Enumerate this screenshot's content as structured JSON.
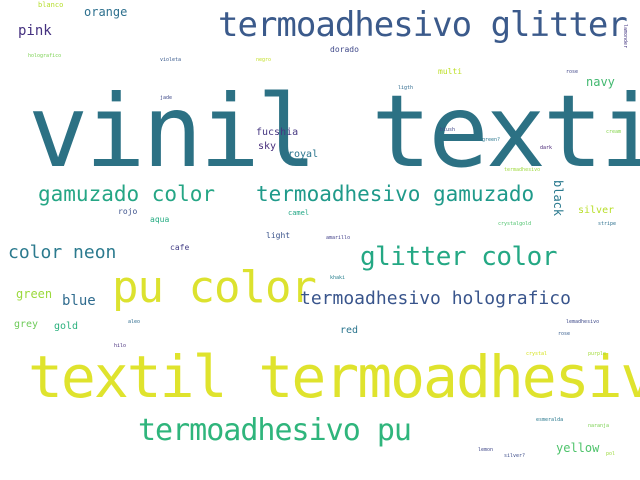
{
  "words": {
    "vinil_textil": {
      "text": "vinil textil",
      "color": "#2c7184"
    },
    "textil_termoadhesivo": {
      "text": "textil termoadhesivo",
      "color": "#dfe32d"
    },
    "pu_color": {
      "text": "pu color",
      "color": "#dce22f"
    },
    "termoadhesivo_glitter": {
      "text": "termoadhesivo glitter",
      "color": "#3b5a8b"
    },
    "termoadhesivo_pu": {
      "text": "termoadhesivo pu",
      "color": "#2fb57c"
    },
    "glitter_color": {
      "text": "glitter color",
      "color": "#24a884"
    },
    "termoadhesivo_gamuzado": {
      "text": "termoadhesivo gamuzado",
      "color": "#1f9a8a"
    },
    "gamuzado_color": {
      "text": "gamuzado color",
      "color": "#25a685"
    },
    "termoadhesivo_holografico": {
      "text": "termoadhesivo holografico",
      "color": "#39558c"
    },
    "color_neon": {
      "text": "color neon",
      "color": "#2b7a8e"
    },
    "blue": {
      "text": "blue",
      "color": "#2f6b8e"
    },
    "pink": {
      "text": "pink",
      "color": "#44307f"
    },
    "orange": {
      "text": "orange",
      "color": "#2d708e"
    },
    "green": {
      "text": "green",
      "color": "#9bd93c"
    },
    "grey": {
      "text": "grey",
      "color": "#6fcb5a"
    },
    "gold": {
      "text": "gold",
      "color": "#2cb17e"
    },
    "yellow": {
      "text": "yellow",
      "color": "#4ec36b"
    },
    "red": {
      "text": "red",
      "color": "#2b758e"
    },
    "black": {
      "text": "black",
      "color": "#2a798e"
    },
    "silver": {
      "text": "silver",
      "color": "#b8de29"
    },
    "navy": {
      "text": "navy",
      "color": "#41b86f"
    },
    "multi": {
      "text": "multi",
      "color": "#bddf26"
    },
    "fucshia": {
      "text": "fucshia",
      "color": "#453781"
    },
    "sky": {
      "text": "sky",
      "color": "#472d7b"
    },
    "royal": {
      "text": "royal",
      "color": "#2b758e"
    },
    "rojo": {
      "text": "rojo",
      "color": "#3b518b"
    },
    "aqua": {
      "text": "aqua",
      "color": "#25ac82"
    },
    "camel": {
      "text": "camel",
      "color": "#22a785"
    },
    "light": {
      "text": "light",
      "color": "#3a538b"
    },
    "cafe": {
      "text": "cafe",
      "color": "#433e85"
    },
    "dorado": {
      "text": "dorado",
      "color": "#3f4889"
    },
    "blanco": {
      "text": "blanco",
      "color": "#b5de2b"
    },
    "holografico": {
      "text": "holografico",
      "color": "#7ad151"
    },
    "violeta": {
      "text": "violeta",
      "color": "#38598c"
    },
    "negro": {
      "text": "negro",
      "color": "#c2df23"
    },
    "jade": {
      "text": "jade",
      "color": "#3e4989"
    },
    "ligth": {
      "text": "ligth",
      "color": "#306a8e"
    },
    "rose": {
      "text": "rose",
      "color": "#404688"
    },
    "blush": {
      "text": "blush",
      "color": "#3f4788"
    },
    "green_q": {
      "text": "green?",
      "color": "#2a778e"
    },
    "dark": {
      "text": "dark",
      "color": "#482576"
    },
    "termadhesivo": {
      "text": "termadhesivo",
      "color": "#9dd93b"
    },
    "cream": {
      "text": "cream",
      "color": "#84d44b"
    },
    "crystalgold": {
      "text": "crystalgold",
      "color": "#4cc26c"
    },
    "stripe": {
      "text": "stripe",
      "color": "#2d708e"
    },
    "amarillo": {
      "text": "amarillo",
      "color": "#42408a"
    },
    "khaki": {
      "text": "khaki",
      "color": "#277f8e"
    },
    "aleo": {
      "text": "aleo",
      "color": "#2f6c8e"
    },
    "lemadhesivo": {
      "text": "lemadhesivo",
      "color": "#3e4a89"
    },
    "rose2": {
      "text": "rose",
      "color": "#365c8d"
    },
    "crystal": {
      "text": "crystal",
      "color": "#d5e21a"
    },
    "purple": {
      "text": "purple",
      "color": "#a2da37"
    },
    "hilo": {
      "text": "hilo",
      "color": "#472e7c"
    },
    "esmeralda": {
      "text": "esmeralda",
      "color": "#2a798e"
    },
    "naranja": {
      "text": "naranja",
      "color": "#7ad151"
    },
    "lemon": {
      "text": "lemon",
      "color": "#3f4788"
    },
    "silver2": {
      "text": "silver?",
      "color": "#3d4d8a"
    },
    "pol": {
      "text": "pol",
      "color": "#9bd93c"
    },
    "lamonder": {
      "text": "lamonder",
      "color": "#453882"
    },
    "arrow_small": {
      "text": "green?",
      "color": "#2a778e"
    }
  }
}
